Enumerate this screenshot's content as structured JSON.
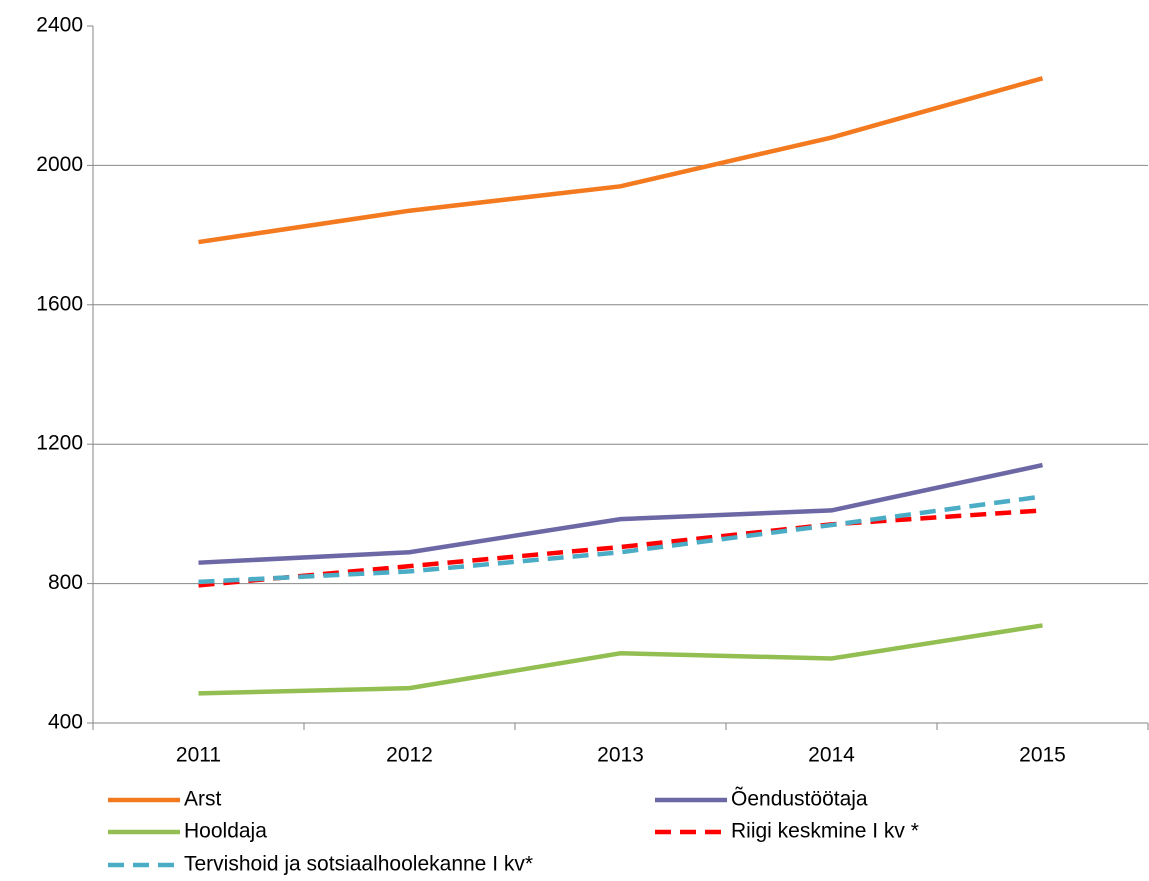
{
  "chart_data": {
    "type": "line",
    "categories": [
      "2011",
      "2012",
      "2013",
      "2014",
      "2015"
    ],
    "series": [
      {
        "name": "Arst",
        "color": "#f47a20",
        "dashed": false,
        "values": [
          1780,
          1870,
          1940,
          2080,
          2250
        ]
      },
      {
        "name": "Õendustöötaja",
        "color": "#6c68a6",
        "dashed": false,
        "values": [
          860,
          890,
          985,
          1010,
          1140
        ]
      },
      {
        "name": "Hooldaja",
        "color": "#93bf52",
        "dashed": false,
        "values": [
          485,
          500,
          600,
          585,
          680
        ]
      },
      {
        "name": "Riigi keskmine I kv *",
        "color": "#ff0000",
        "dashed": true,
        "values": [
          795,
          850,
          905,
          970,
          1010
        ]
      },
      {
        "name": "Tervishoid ja sotsiaalhoolekanne I kv*",
        "color": "#4bacc6",
        "dashed": true,
        "values": [
          805,
          835,
          890,
          968,
          1050
        ]
      }
    ],
    "ylim": [
      400,
      2400
    ],
    "yticks": [
      400,
      800,
      1200,
      1600,
      2000,
      2400
    ],
    "grid": true,
    "legend": "bottom"
  }
}
